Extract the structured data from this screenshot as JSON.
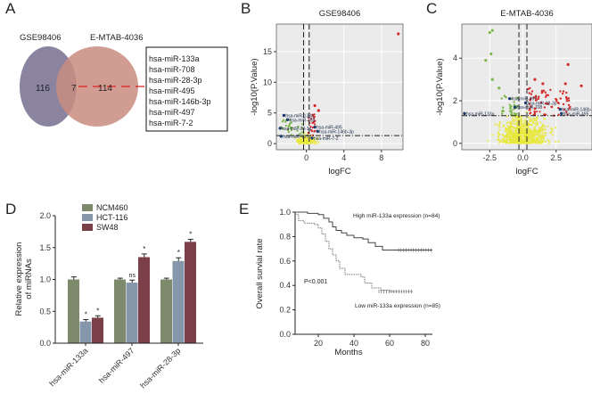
{
  "panels": {
    "a": "A",
    "b": "B",
    "c": "C",
    "d": "D",
    "e": "E"
  },
  "venn": {
    "left_label": "GSE98406",
    "right_label": "E-MTAB-4036",
    "left_only": "116",
    "overlap": "7",
    "right_only": "114",
    "overlap_list": [
      "hsa-miR-133a",
      "hsa-miR-708",
      "hsa-miR-28-3p",
      "hsa-miR-495",
      "hsa-miR-146b-3p",
      "hsa-miR-497",
      "hsa-miR-7-2"
    ],
    "colors": {
      "left": "#8a84a0",
      "right": "#c98c80",
      "link": "#e02020"
    }
  },
  "chart_data": [
    {
      "type": "scatter",
      "panel": "B",
      "title": "GSE98406",
      "xlabel": "logFC",
      "ylabel": "-log10(P.Value)",
      "xticks": [
        "0",
        "4",
        "8"
      ],
      "xtick_values": [
        0,
        4,
        8
      ],
      "yticks": [
        "0",
        "5",
        "10",
        "15"
      ],
      "ytick_values": [
        0,
        5,
        10,
        15
      ],
      "xlim": [
        -3.2,
        10.3
      ],
      "ylim": [
        -1,
        19.5
      ],
      "threshold_p": 1.3,
      "grid": true,
      "highlight_points": [
        {
          "x": 9.8,
          "y": 17.9,
          "color": "red"
        },
        {
          "x": 0.9,
          "y": 6.2,
          "color": "red"
        },
        {
          "x": 1.3,
          "y": 5.4,
          "color": "red"
        }
      ],
      "labeled_points": [
        {
          "label": "hsa-miR-133a",
          "x": -2.4,
          "y": 4.6
        },
        {
          "label": "hsa-miR-708",
          "x": -2.0,
          "y": 3.9
        },
        {
          "label": "hsa-miR-28-3p",
          "x": -2.8,
          "y": 2.5
        },
        {
          "label": "hsa-miR-495",
          "x": 0.9,
          "y": 2.7
        },
        {
          "label": "hsa-miR-146b-3p",
          "x": 1.2,
          "y": 2.0
        },
        {
          "label": "hsa-miR-497",
          "x": -2.7,
          "y": 1.2
        },
        {
          "label": "hsa-miR-7-2",
          "x": 0.6,
          "y": 0.9
        }
      ]
    },
    {
      "type": "scatter",
      "panel": "C",
      "title": "E-MTAB-4036",
      "xlabel": "logFC",
      "ylabel": "-log10(P.Value)",
      "xticks": [
        "-2.5",
        "0.0",
        "2.5"
      ],
      "xtick_values": [
        -2.5,
        0,
        2.5
      ],
      "yticks": [
        "0",
        "2",
        "4"
      ],
      "ytick_values": [
        0,
        2,
        4
      ],
      "xlim": [
        -4.6,
        5.2
      ],
      "ylim": [
        -0.3,
        5.6
      ],
      "threshold_p": 1.3,
      "grid": true,
      "highlight_points": [
        {
          "x": -2.5,
          "y": 5.2,
          "color": "green"
        },
        {
          "x": -2.3,
          "y": 5.3,
          "color": "green"
        },
        {
          "x": -2.4,
          "y": 4.2,
          "color": "green"
        },
        {
          "x": -2.8,
          "y": 3.9,
          "color": "green"
        },
        {
          "x": -2.3,
          "y": 3.0,
          "color": "green"
        },
        {
          "x": -1.8,
          "y": 2.6,
          "color": "green"
        },
        {
          "x": 3.4,
          "y": 3.7,
          "color": "red"
        },
        {
          "x": 4.4,
          "y": 2.7,
          "color": "red"
        },
        {
          "x": 0.9,
          "y": 3.0,
          "color": "red"
        },
        {
          "x": 3.2,
          "y": 2.8,
          "color": "red"
        },
        {
          "x": 1.5,
          "y": 2.8,
          "color": "red"
        }
      ],
      "labeled_points": [
        {
          "label": "hsa-miR-497",
          "x": -1.0,
          "y": 2.1
        },
        {
          "label": "hsa-miR-28-3p",
          "x": 0.2,
          "y": 1.9
        },
        {
          "label": "hsa-miR-708",
          "x": -0.6,
          "y": 1.7
        },
        {
          "label": "hsa-miR-133a",
          "x": -4.4,
          "y": 1.4
        },
        {
          "label": "hsa-miR-146b-3p",
          "x": 2.8,
          "y": 1.6
        },
        {
          "label": "hsa-miR-495",
          "x": 2.9,
          "y": 1.4
        }
      ]
    },
    {
      "type": "bar",
      "panel": "D",
      "ylabel": [
        "Relative expression",
        "of miRNAs"
      ],
      "categories": [
        "hsa-miR-133a",
        "hsa-miR-497",
        "hsa-miR-28-3p"
      ],
      "yticks": [
        "0.0",
        "0.5",
        "1.0",
        "1.5",
        "2.0"
      ],
      "ylim": [
        0,
        2.0
      ],
      "legend": "top",
      "series": [
        {
          "name": "NCM460",
          "color": "#7d8a6c",
          "values": [
            1.0,
            1.0,
            1.0
          ],
          "errors": [
            0.04,
            0.02,
            0.02
          ],
          "marks": [
            "",
            "",
            ""
          ]
        },
        {
          "name": "HCT-116",
          "color": "#8696ab",
          "values": [
            0.34,
            0.95,
            1.29
          ],
          "errors": [
            0.03,
            0.04,
            0.05
          ],
          "marks": [
            "*",
            "ns",
            "*"
          ]
        },
        {
          "name": "SW48",
          "color": "#7b3f47",
          "values": [
            0.4,
            1.35,
            1.59
          ],
          "errors": [
            0.03,
            0.05,
            0.04
          ],
          "marks": [
            "*",
            "*",
            "*"
          ]
        }
      ]
    },
    {
      "type": "line",
      "panel": "E",
      "xlabel": "Months",
      "ylabel": "Overall survial rate",
      "xticks": [
        "20",
        "40",
        "60",
        "80"
      ],
      "xtick_values": [
        20,
        40,
        60,
        80
      ],
      "yticks": [
        "0.0",
        "0.2",
        "0.4",
        "0.6",
        "0.8",
        "1.0"
      ],
      "xlim": [
        7,
        84
      ],
      "ylim": [
        0,
        1.0
      ],
      "annotation": "P<0.001",
      "series": [
        {
          "name": "High miR-133a expression (n=84)",
          "style": "solid",
          "x": [
            7,
            14,
            20,
            23,
            26,
            28,
            30,
            33,
            36,
            40,
            45,
            48,
            52,
            56,
            84
          ],
          "y": [
            1.0,
            0.99,
            0.98,
            0.95,
            0.92,
            0.88,
            0.85,
            0.83,
            0.81,
            0.79,
            0.78,
            0.75,
            0.72,
            0.69,
            0.69
          ]
        },
        {
          "name": "Low miR-133a expression (n=85)",
          "style": "dotted",
          "x": [
            7,
            9,
            12,
            18,
            20,
            22,
            24,
            26,
            28,
            30,
            32,
            35,
            44,
            46,
            50,
            55,
            60,
            73
          ],
          "y": [
            0.98,
            0.93,
            0.91,
            0.9,
            0.87,
            0.82,
            0.76,
            0.7,
            0.65,
            0.6,
            0.54,
            0.49,
            0.47,
            0.42,
            0.38,
            0.36,
            0.35,
            0.35
          ]
        }
      ]
    }
  ]
}
